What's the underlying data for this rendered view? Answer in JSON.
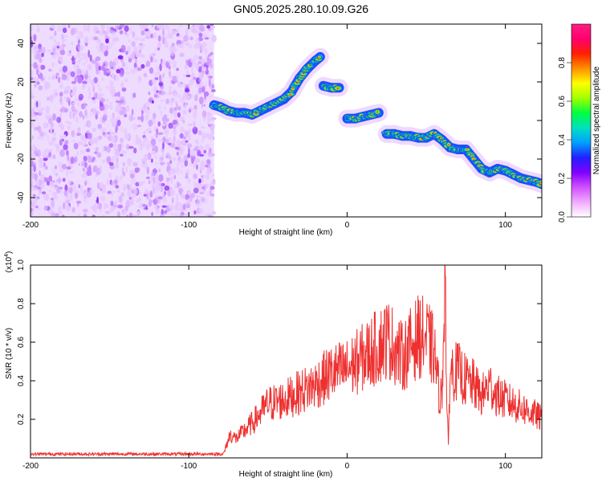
{
  "title": "GN05.2025.280.10.09.G26",
  "chart_data": [
    {
      "type": "heatmap",
      "xlabel": "Height of straight line (km)",
      "ylabel": "Frequency (Hz)",
      "xlim": [
        -200,
        123
      ],
      "ylim": [
        -50,
        50
      ],
      "x_ticks": [
        -200,
        -100,
        0,
        100
      ],
      "y_ticks": [
        -40,
        -20,
        0,
        20,
        40
      ],
      "noise_region_x": [
        -200,
        -84
      ],
      "ridge_x": [
        -84,
        -80,
        -75,
        -70,
        -65,
        -60,
        -55,
        -50,
        -45,
        -40,
        -35,
        -30,
        -25,
        -20,
        -17,
        -15,
        -10,
        -5,
        0,
        5,
        10,
        15,
        20,
        25,
        30,
        35,
        40,
        45,
        50,
        55,
        60,
        65,
        70,
        75,
        80,
        85,
        90,
        95,
        100,
        105,
        110,
        115,
        120,
        123
      ],
      "ridge_freq": [
        8,
        7,
        5,
        4,
        4,
        3,
        5,
        7,
        9,
        11,
        15,
        22,
        27,
        31,
        33,
        18,
        17,
        17,
        1,
        1,
        2,
        3,
        4,
        -7,
        -7,
        -8,
        -8,
        -9,
        -9,
        -7,
        -10,
        -14,
        -15,
        -15,
        -20,
        -25,
        -27,
        -25,
        -26,
        -28,
        -30,
        -31,
        -32,
        -33
      ],
      "colorbar": {
        "label": "Normalized spectral amplitude",
        "range": [
          0,
          1
        ],
        "ticks": [
          "0.0",
          "0.2",
          "0.4",
          "0.6",
          "0.8"
        ],
        "colors": [
          "#ffffff",
          "#f1aaff",
          "#d050ff",
          "#8000ff",
          "#2020ff",
          "#00a0ff",
          "#00e0c0",
          "#00ff40",
          "#a0ff00",
          "#ffff00",
          "#ff9000",
          "#ff2000",
          "#ff0070",
          "#ff2080"
        ]
      }
    },
    {
      "type": "line",
      "xlabel": "Height of straight line (km)",
      "ylabel": "SNR (10 * v/v)",
      "y_multiplier": "(x10",
      "y_multiplier_exp": "4",
      "xlim": [
        -200,
        123
      ],
      "ylim": [
        0,
        1.0
      ],
      "x_ticks": [
        -200,
        -100,
        0,
        100
      ],
      "y_ticks": [
        "0.2",
        "0.4",
        "0.6",
        "0.8",
        "1.0"
      ],
      "series_color": "#ee3030",
      "x": [
        -200,
        -150,
        -100,
        -84,
        -78,
        -74,
        -70,
        -60,
        -50,
        -40,
        -30,
        -20,
        -10,
        0,
        10,
        20,
        25,
        30,
        35,
        40,
        45,
        50,
        55,
        58,
        60,
        61,
        62,
        63,
        64,
        65,
        70,
        75,
        80,
        85,
        90,
        95,
        100,
        110,
        120,
        123
      ],
      "values": [
        0.02,
        0.02,
        0.02,
        0.02,
        0.02,
        0.12,
        0.1,
        0.18,
        0.28,
        0.3,
        0.34,
        0.38,
        0.44,
        0.46,
        0.52,
        0.58,
        0.62,
        0.58,
        0.52,
        0.58,
        0.63,
        0.62,
        0.55,
        0.35,
        0.3,
        0.75,
        1.0,
        0.25,
        0.06,
        0.45,
        0.45,
        0.4,
        0.38,
        0.32,
        0.38,
        0.32,
        0.3,
        0.26,
        0.22,
        0.2
      ]
    }
  ]
}
